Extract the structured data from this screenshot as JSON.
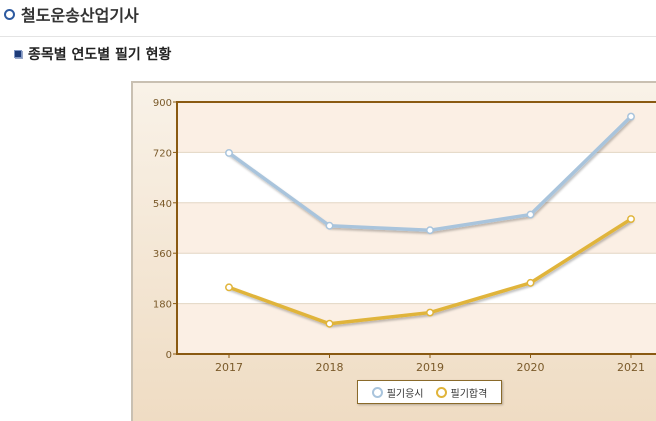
{
  "header": {
    "title": "철도운송산업기사",
    "icon": "ring-icon"
  },
  "section": {
    "title": "종목별 연도별 필기 현황",
    "icon": "square-bullet-icon"
  },
  "chart_data": {
    "type": "line",
    "categories": [
      "2017",
      "2018",
      "2019",
      "2020",
      "2021"
    ],
    "series": [
      {
        "name": "필기응시",
        "values": [
          718,
          458,
          442,
          498,
          848
        ],
        "color": "#a9c4dc",
        "marker": "#ffffff"
      },
      {
        "name": "필기합격",
        "values": [
          238,
          108,
          148,
          254,
          482
        ],
        "color": "#e0b43a",
        "marker": "#ffffff"
      }
    ],
    "ylim": [
      0,
      900
    ],
    "yticks": [
      0,
      180,
      360,
      540,
      720,
      900
    ],
    "grid": true,
    "legend": "bottom",
    "colors": {
      "plot_border": "#8a5a12",
      "band": "#fbefe4",
      "frame_top": "#f9f2e8",
      "frame_bottom": "#efdcc3",
      "tick_text": "#7a5a2a"
    }
  }
}
